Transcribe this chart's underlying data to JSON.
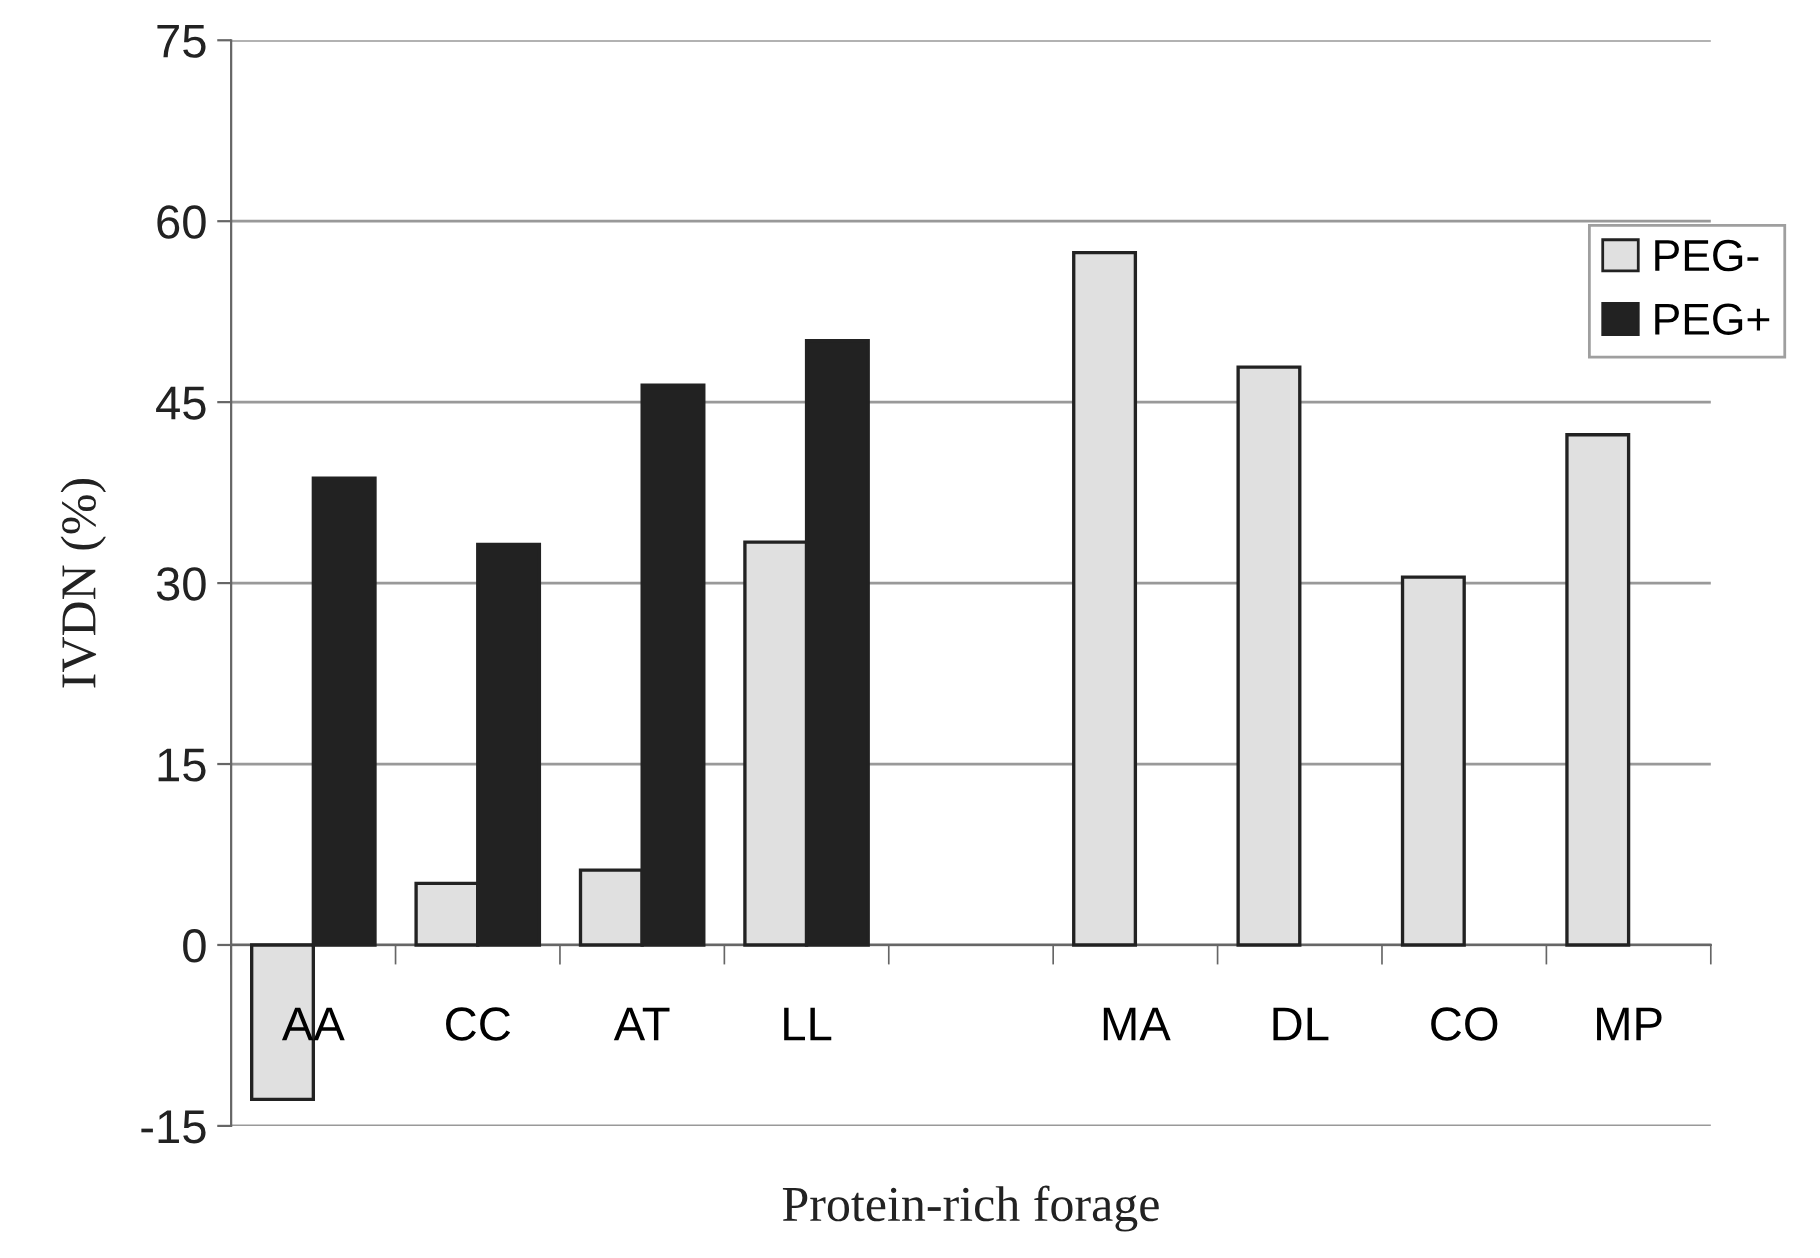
{
  "chart_data": {
    "type": "bar",
    "xlabel": "Protein-rich forage",
    "ylabel": "IVDN (%)",
    "categories": [
      "AA",
      "CC",
      "AT",
      "LL",
      null,
      "MA",
      "DL",
      "CO",
      "MP"
    ],
    "series": [
      {
        "name": "PEG-",
        "color": "#e0e0e0",
        "values": [
          -12.8,
          5.1,
          6.2,
          33.4,
          null,
          57.4,
          47.9,
          30.5,
          42.3
        ]
      },
      {
        "name": "PEG+",
        "color": "#222222",
        "values": [
          38.7,
          33.2,
          46.4,
          50.1,
          null,
          null,
          null,
          null,
          null
        ]
      }
    ],
    "ylim": [
      -15,
      75
    ],
    "yticks": [
      -15,
      0,
      15,
      30,
      45,
      60,
      75
    ],
    "grid": "y",
    "legend": "top right"
  }
}
